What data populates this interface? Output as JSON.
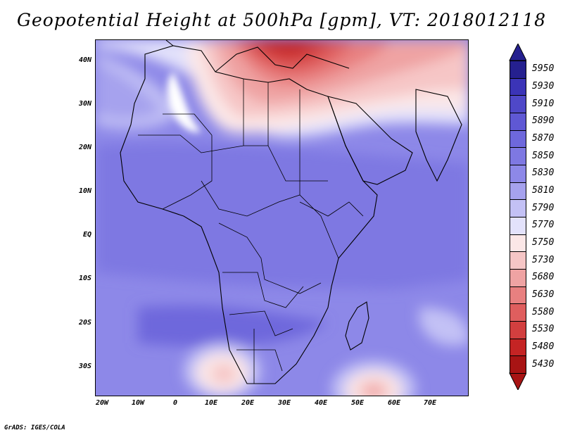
{
  "title": "Geopotential Height at 500hPa [gpm], VT: 2018012118",
  "credit": "GrADS: IGES/COLA",
  "map": {
    "lon_range": [
      -25,
      80
    ],
    "lat_range": [
      -37,
      45
    ],
    "lat_labels": [
      "40N",
      "30N",
      "20N",
      "10N",
      "EQ",
      "10S",
      "20S",
      "30S"
    ],
    "lat_values": [
      40,
      30,
      20,
      10,
      0,
      -10,
      -20,
      -30
    ],
    "lon_labels": [
      "20W",
      "10W",
      "0",
      "10E",
      "20E",
      "30E",
      "40E",
      "50E",
      "60E",
      "70E"
    ],
    "lon_values": [
      -20,
      -10,
      0,
      10,
      20,
      30,
      40,
      50,
      60,
      70
    ],
    "field_levels_gpm": [
      5430,
      5480,
      5530,
      5580,
      5630,
      5680,
      5730,
      5750,
      5770,
      5790,
      5810,
      5830,
      5850,
      5870,
      5890,
      5910,
      5930,
      5950
    ],
    "features": [
      {
        "name": "Mediterranean / Middle East trough",
        "region": "north-center",
        "lon": 22,
        "lat": 42,
        "level": 5480
      },
      {
        "name": "Northwest Africa low-height band",
        "region": "north-west",
        "lon": -3,
        "lat": 32,
        "level": 5770
      },
      {
        "name": "Southwest cutoff low",
        "region": "south-west",
        "lon": 13,
        "lat": -32,
        "level": 5770
      },
      {
        "name": "Southeast cutoff low",
        "region": "south-east",
        "lon": 54,
        "lat": -35,
        "level": 5730
      }
    ]
  },
  "colorbar": {
    "labels": [
      "5950",
      "5930",
      "5910",
      "5890",
      "5870",
      "5850",
      "5830",
      "5810",
      "5790",
      "5770",
      "5750",
      "5730",
      "5680",
      "5630",
      "5580",
      "5530",
      "5480",
      "5430"
    ],
    "colors": [
      "#25208f",
      "#3b34b7",
      "#4f48c8",
      "#5f58d4",
      "#6e68dc",
      "#7e78e2",
      "#8d88e8",
      "#a6a2ee",
      "#c3c1f5",
      "#e3e2fb",
      "#fbe7e7",
      "#f6c6c6",
      "#efa3a3",
      "#e88080",
      "#df5e5e",
      "#d23f3f",
      "#c42424",
      "#a81414"
    ]
  }
}
